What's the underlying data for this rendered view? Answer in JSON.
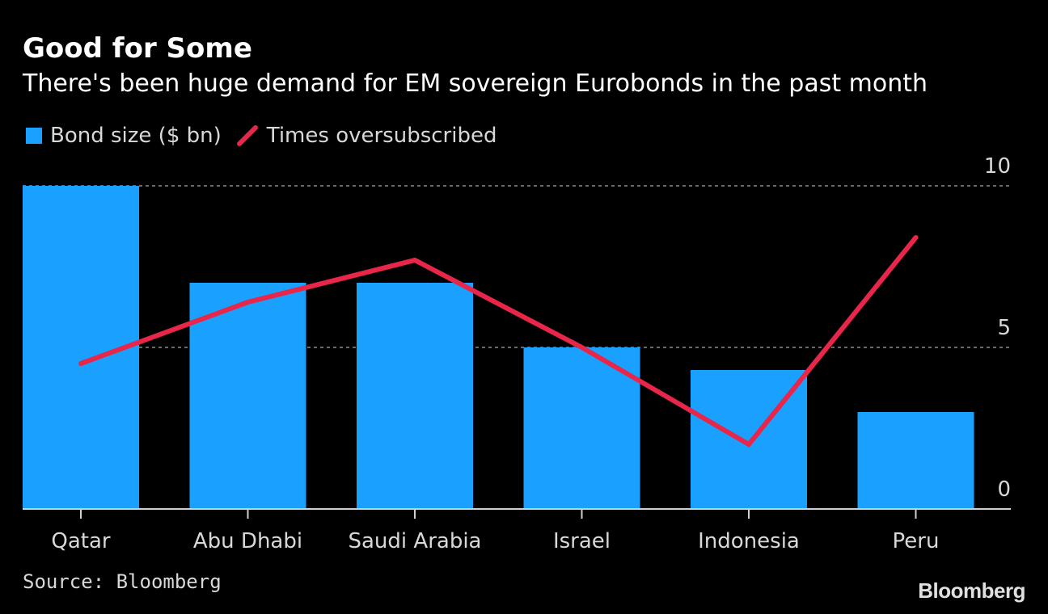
{
  "chart_data": {
    "type": "bar",
    "title": "Good for Some",
    "subtitle": "There's been huge demand for EM sovereign Eurobonds in the past month",
    "categories": [
      "Qatar",
      "Abu Dhabi",
      "Saudi Arabia",
      "Israel",
      "Indonesia",
      "Peru"
    ],
    "series": [
      {
        "name": "Bond size ($ bn)",
        "type": "bar",
        "color": "#1aa0ff",
        "values": [
          10,
          7,
          7,
          5,
          4.3,
          3
        ]
      },
      {
        "name": "Times oversubscribed",
        "type": "line",
        "color": "#e8264a",
        "values": [
          4.5,
          6.4,
          7.7,
          5.0,
          2.0,
          8.4
        ]
      }
    ],
    "yticks": [
      0,
      5,
      10
    ],
    "ylim": [
      0,
      10
    ],
    "grid": true,
    "legend_position": "top-left",
    "source": "Source: Bloomberg",
    "brand": "Bloomberg"
  }
}
